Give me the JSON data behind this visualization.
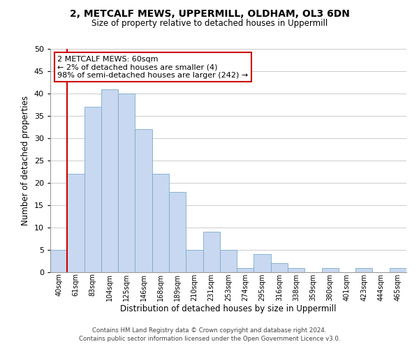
{
  "title": "2, METCALF MEWS, UPPERMILL, OLDHAM, OL3 6DN",
  "subtitle": "Size of property relative to detached houses in Uppermill",
  "xlabel": "Distribution of detached houses by size in Uppermill",
  "ylabel": "Number of detached properties",
  "bin_labels": [
    "40sqm",
    "61sqm",
    "83sqm",
    "104sqm",
    "125sqm",
    "146sqm",
    "168sqm",
    "189sqm",
    "210sqm",
    "231sqm",
    "253sqm",
    "274sqm",
    "295sqm",
    "316sqm",
    "338sqm",
    "359sqm",
    "380sqm",
    "401sqm",
    "423sqm",
    "444sqm",
    "465sqm"
  ],
  "bar_values": [
    5,
    22,
    37,
    41,
    40,
    32,
    22,
    18,
    5,
    9,
    5,
    1,
    4,
    2,
    1,
    0,
    1,
    0,
    1,
    0,
    1
  ],
  "bar_color": "#c8d8f0",
  "bar_edge_color": "#7aabcc",
  "highlight_color": "#cc0000",
  "annotation_title": "2 METCALF MEWS: 60sqm",
  "annotation_line1": "← 2% of detached houses are smaller (4)",
  "annotation_line2": "98% of semi-detached houses are larger (242) →",
  "annotation_box_color": "#ffffff",
  "annotation_box_edge": "#cc0000",
  "footer_line1": "Contains HM Land Registry data © Crown copyright and database right 2024.",
  "footer_line2": "Contains public sector information licensed under the Open Government Licence v3.0.",
  "ylim": [
    0,
    50
  ],
  "yticks": [
    0,
    5,
    10,
    15,
    20,
    25,
    30,
    35,
    40,
    45,
    50
  ],
  "background_color": "#ffffff",
  "grid_color": "#cccccc"
}
